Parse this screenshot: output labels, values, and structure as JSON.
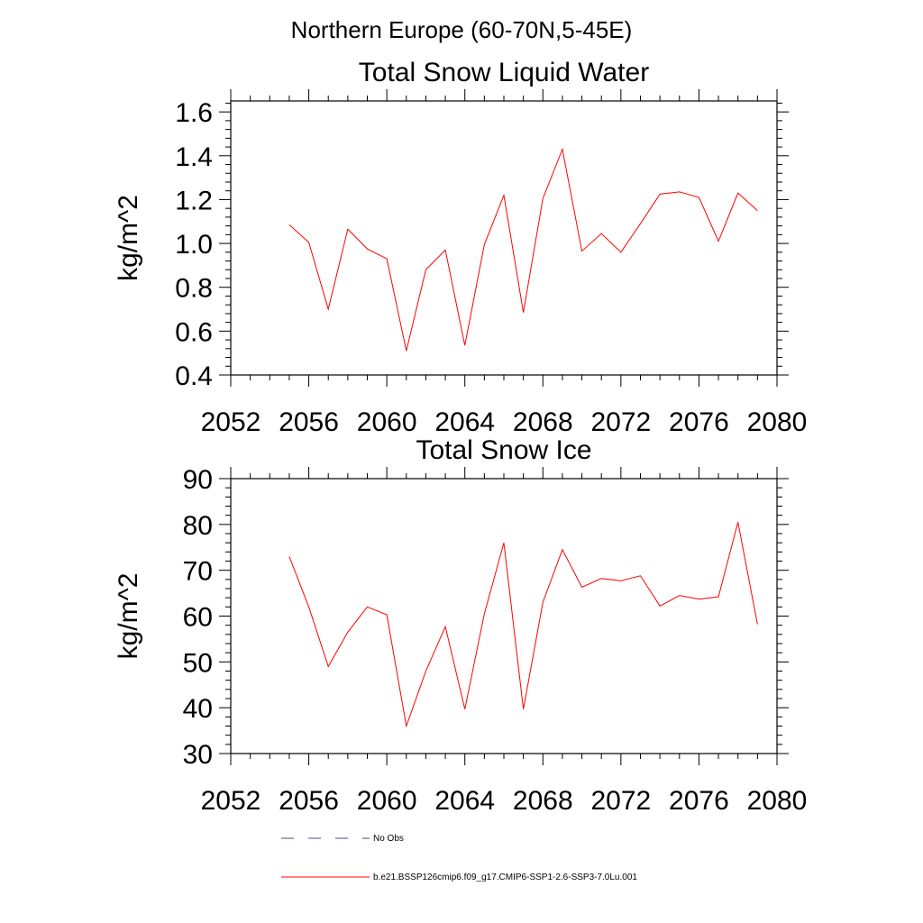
{
  "figure_title": "Northern Europe (60-70N,5-45E)",
  "colors": {
    "series": "#ff0000",
    "obs": "#4a4a8a",
    "axis": "#000000"
  },
  "chart_data": [
    {
      "type": "line",
      "title": "Total Snow Liquid Water",
      "xlabel": "",
      "ylabel": "kg/m^2",
      "xlim": [
        2052,
        2080
      ],
      "ylim": [
        0.4,
        1.65
      ],
      "xticks": [
        "2052",
        "2056",
        "2060",
        "2064",
        "2068",
        "2072",
        "2076",
        "2080"
      ],
      "yticks": [
        "0.4",
        "0.6",
        "0.8",
        "1.0",
        "1.2",
        "1.4",
        "1.6"
      ],
      "x": [
        2055,
        2056,
        2057,
        2058,
        2059,
        2060,
        2061,
        2062,
        2063,
        2064,
        2065,
        2066,
        2067,
        2068,
        2069,
        2070,
        2071,
        2072,
        2073,
        2074,
        2075,
        2076,
        2077,
        2078,
        2079
      ],
      "series": [
        {
          "name": "b.e21.BSSP126cmip6.f09_g17.CMIP6-SSP1-2.6-SSP3-7.0Lu.001",
          "values": [
            1.085,
            1.005,
            0.7,
            1.065,
            0.975,
            0.93,
            0.51,
            0.88,
            0.97,
            0.535,
            0.995,
            1.22,
            0.685,
            1.205,
            1.43,
            0.965,
            1.045,
            0.96,
            1.09,
            1.225,
            1.235,
            1.21,
            1.01,
            1.23,
            1.15
          ]
        }
      ]
    },
    {
      "type": "line",
      "title": "Total Snow Ice",
      "xlabel": "",
      "ylabel": "kg/m^2",
      "xlim": [
        2052,
        2080
      ],
      "ylim": [
        30,
        90
      ],
      "xticks": [
        "2052",
        "2056",
        "2060",
        "2064",
        "2068",
        "2072",
        "2076",
        "2080"
      ],
      "yticks": [
        "30",
        "40",
        "50",
        "60",
        "70",
        "80",
        "90"
      ],
      "x": [
        2055,
        2056,
        2057,
        2058,
        2059,
        2060,
        2061,
        2062,
        2063,
        2064,
        2065,
        2066,
        2067,
        2068,
        2069,
        2070,
        2071,
        2072,
        2073,
        2074,
        2075,
        2076,
        2077,
        2078,
        2079
      ],
      "series": [
        {
          "name": "b.e21.BSSP126cmip6.f09_g17.CMIP6-SSP1-2.6-SSP3-7.0Lu.001",
          "values": [
            73,
            62,
            49,
            56.5,
            62,
            60.3,
            36,
            48,
            57.7,
            39.7,
            60.5,
            76,
            39.7,
            63,
            74.5,
            66.3,
            68.2,
            67.7,
            68.8,
            62.2,
            64.5,
            63.7,
            64.2,
            80.5,
            58.2
          ]
        }
      ]
    }
  ],
  "legend": [
    {
      "label": "No Obs",
      "style": "dashed"
    },
    {
      "label": "b.e21.BSSP126cmip6.f09_g17.CMIP6-SSP1-2.6-SSP3-7.0Lu.001",
      "style": "solid"
    }
  ]
}
